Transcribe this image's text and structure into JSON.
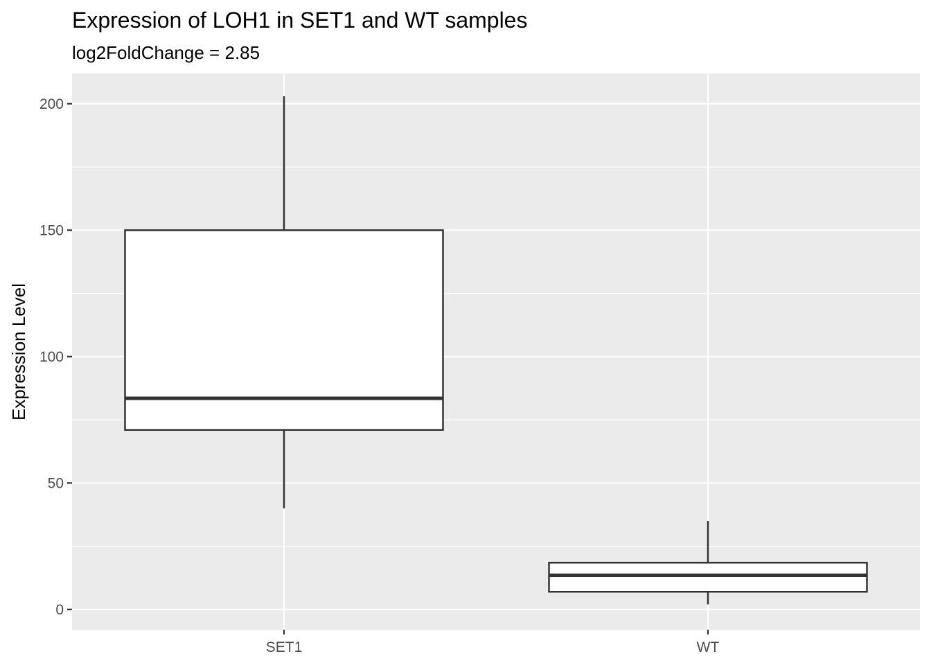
{
  "chart_data": {
    "type": "boxplot",
    "title": "Expression of LOH1 in SET1 and WT samples",
    "subtitle": "log2FoldChange = 2.85",
    "xlabel": "",
    "ylabel": "Expression Level",
    "ylim": [
      -8,
      212
    ],
    "yticks": [
      0,
      50,
      100,
      150,
      200
    ],
    "grid": true,
    "categories": [
      "SET1",
      "WT"
    ],
    "boxes": [
      {
        "category": "SET1",
        "min": 40,
        "q1": 71,
        "median": 83.5,
        "q3": 150,
        "max": 203
      },
      {
        "category": "WT",
        "min": 2,
        "q1": 7,
        "median": 13.5,
        "q3": 18.5,
        "max": 35
      }
    ],
    "colors": {
      "panel": "#ebebeb",
      "grid": "#ffffff",
      "box_fill": "#ffffff",
      "box_stroke": "#333333",
      "tick": "#333333"
    }
  }
}
